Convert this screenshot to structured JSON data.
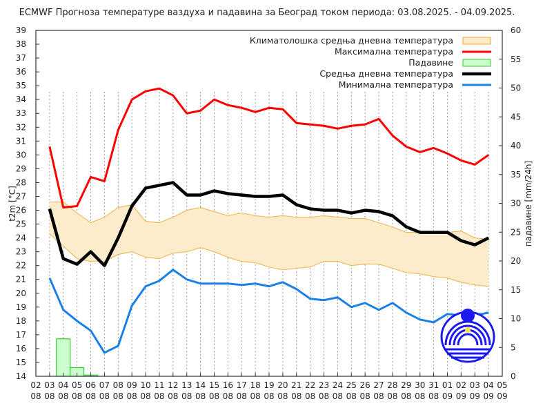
{
  "chart_data": {
    "type": "line",
    "title": "ECMWF Прогноза температуре ваздуха и падавина за Београд током периода: 03.08.2025. - 04.09.2025.",
    "ylabel": "t2m [°C]",
    "y2label": "падавине [mm/24h]",
    "ylim": [
      14,
      39
    ],
    "y2lim": [
      0,
      60
    ],
    "yticks": [
      14,
      15,
      16,
      17,
      18,
      19,
      20,
      21,
      22,
      23,
      24,
      25,
      26,
      27,
      28,
      29,
      30,
      31,
      32,
      33,
      34,
      35,
      36,
      37,
      38,
      39
    ],
    "y2ticks": [
      0,
      5,
      10,
      15,
      20,
      25,
      30,
      35,
      40,
      45,
      50,
      55,
      60
    ],
    "xtick_labels": [
      [
        "02",
        "08"
      ],
      [
        "03",
        "08"
      ],
      [
        "04",
        "08"
      ],
      [
        "05",
        "08"
      ],
      [
        "06",
        "08"
      ],
      [
        "07",
        "08"
      ],
      [
        "08",
        "08"
      ],
      [
        "09",
        "08"
      ],
      [
        "10",
        "08"
      ],
      [
        "11",
        "08"
      ],
      [
        "12",
        "08"
      ],
      [
        "13",
        "08"
      ],
      [
        "14",
        "08"
      ],
      [
        "15",
        "08"
      ],
      [
        "16",
        "08"
      ],
      [
        "17",
        "08"
      ],
      [
        "18",
        "08"
      ],
      [
        "19",
        "08"
      ],
      [
        "20",
        "08"
      ],
      [
        "21",
        "08"
      ],
      [
        "22",
        "08"
      ],
      [
        "23",
        "08"
      ],
      [
        "24",
        "08"
      ],
      [
        "25",
        "08"
      ],
      [
        "26",
        "08"
      ],
      [
        "27",
        "08"
      ],
      [
        "28",
        "08"
      ],
      [
        "29",
        "08"
      ],
      [
        "30",
        "08"
      ],
      [
        "31",
        "08"
      ],
      [
        "01",
        "09"
      ],
      [
        "02",
        "09"
      ],
      [
        "03",
        "09"
      ],
      [
        "04",
        "09"
      ],
      [
        "05",
        "09"
      ]
    ],
    "grid": "vertical dotted",
    "legend_position": "top-right",
    "legend": [
      {
        "label": "Климатолошка средња дневна температура",
        "kind": "band",
        "color": "#fdeccb",
        "stroke": "#f0a830"
      },
      {
        "label": "Максимална температура",
        "kind": "line",
        "color": "#ff0000"
      },
      {
        "label": "Падавине",
        "kind": "box",
        "color": "#ccffcc",
        "stroke": "#33cc33"
      },
      {
        "label": "Средња дневна температура",
        "kind": "line",
        "color": "#000000"
      },
      {
        "label": "Минимална температура",
        "kind": "line",
        "color": "#1a80e6"
      }
    ],
    "x_day_index_start": 1,
    "series": {
      "clim_upper": [
        26.6,
        26.6,
        25.8,
        25.1,
        25.5,
        26.2,
        26.4,
        25.2,
        25.1,
        25.5,
        26.0,
        26.2,
        25.9,
        25.6,
        25.8,
        25.6,
        25.5,
        25.6,
        25.5,
        25.5,
        25.6,
        25.5,
        25.4,
        25.4,
        25.1,
        24.8,
        24.4,
        24.4,
        24.4,
        24.4,
        24.5,
        24.0,
        23.9
      ],
      "clim_lower": [
        24.3,
        23.4,
        22.5,
        22.3,
        22.3,
        22.8,
        23.0,
        22.6,
        22.5,
        22.9,
        23.0,
        23.3,
        23.0,
        22.6,
        22.3,
        22.2,
        21.9,
        21.7,
        21.8,
        21.9,
        22.3,
        22.3,
        22.0,
        22.1,
        22.1,
        21.8,
        21.5,
        21.4,
        21.2,
        21.1,
        20.8,
        20.6,
        20.5
      ],
      "max": [
        30.6,
        26.2,
        26.3,
        28.4,
        28.1,
        31.8,
        34.0,
        34.6,
        34.8,
        34.3,
        33.0,
        33.2,
        34.0,
        33.6,
        33.4,
        33.1,
        33.4,
        33.3,
        32.3,
        32.2,
        32.1,
        31.9,
        32.1,
        32.2,
        32.6,
        31.4,
        30.6,
        30.2,
        30.5,
        30.1,
        29.6,
        29.3,
        30.0
      ],
      "mean": [
        26.1,
        22.5,
        22.1,
        23.0,
        22.0,
        24.0,
        26.3,
        27.6,
        27.8,
        28.0,
        27.1,
        27.1,
        27.4,
        27.2,
        27.1,
        27.0,
        27.0,
        27.1,
        26.4,
        26.1,
        26.0,
        26.0,
        25.8,
        26.0,
        25.9,
        25.6,
        24.8,
        24.4,
        24.4,
        24.4,
        23.8,
        23.5,
        24.0
      ],
      "min": [
        21.1,
        18.8,
        18.0,
        17.3,
        15.7,
        16.2,
        19.1,
        20.5,
        20.9,
        21.7,
        21.0,
        20.7,
        20.7,
        20.7,
        20.6,
        20.7,
        20.5,
        20.8,
        20.3,
        19.6,
        19.5,
        19.7,
        19.0,
        19.3,
        18.8,
        19.3,
        18.6,
        18.1,
        17.9,
        18.5,
        18.4,
        18.4,
        18.6
      ],
      "precip_mm": [
        0,
        6.5,
        1.5,
        0.2,
        0,
        0,
        0,
        0,
        0,
        0,
        0,
        0,
        0,
        0,
        0,
        0,
        0,
        0,
        0,
        0,
        0,
        0,
        0,
        0,
        0,
        0,
        0,
        0,
        0,
        0,
        0,
        0,
        0
      ]
    }
  },
  "colors": {
    "max": "#ff0000",
    "mean": "#000000",
    "min": "#1a80e6",
    "band": "#fdeccb",
    "band_edge": "#f0b040",
    "precip": "#ccffcc",
    "precip_edge": "#33cc33",
    "logo": "#1a1aee"
  }
}
